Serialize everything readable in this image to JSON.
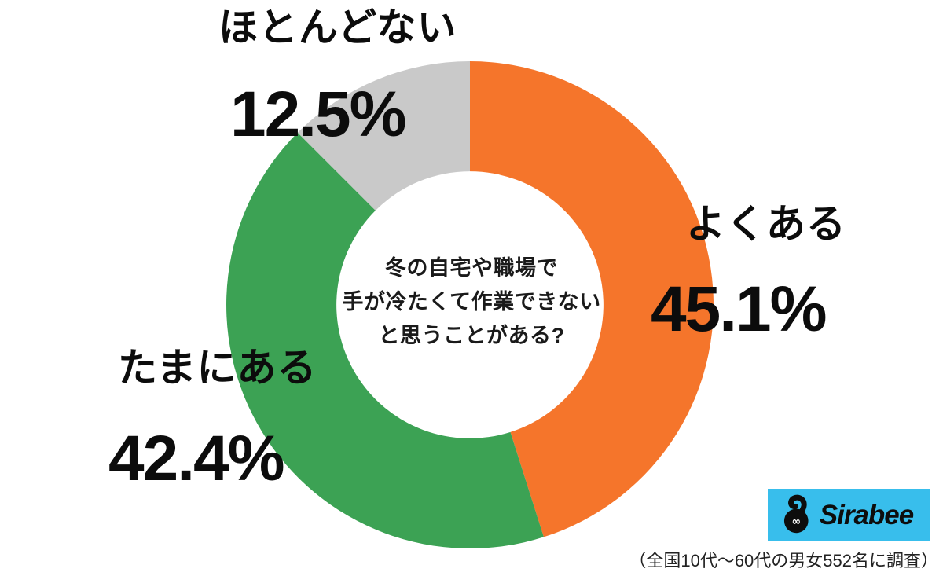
{
  "chart_data": {
    "type": "pie",
    "variant": "donut",
    "title": "冬の自宅や職場で手が冷たくて作業できないと思うことがある?",
    "center_text_lines": [
      "冬の自宅や職場で",
      "手が冷たくて作業できない",
      "と思うことがある?"
    ],
    "slices": [
      {
        "label": "よくある",
        "value": 45.1,
        "display": "45.1%",
        "color": "#F5752B"
      },
      {
        "label": "たまにある",
        "value": 42.4,
        "display": "42.4%",
        "color": "#3CA254"
      },
      {
        "label": "ほとんどない",
        "value": 12.5,
        "display": "12.5%",
        "color": "#C9C9C9"
      }
    ],
    "start_angle_deg": 0,
    "direction": "clockwise",
    "donut_hole_ratio": 0.548,
    "legend_position": "around-chart",
    "label_text_color": "#0c0c0c"
  },
  "branding": {
    "logo_text": "Sirabee",
    "logo_bg_color": "#38BEEC",
    "logo_icon": "sirabee-blob-icon"
  },
  "footnote": "（全国10代〜60代の男女552名に調査）"
}
